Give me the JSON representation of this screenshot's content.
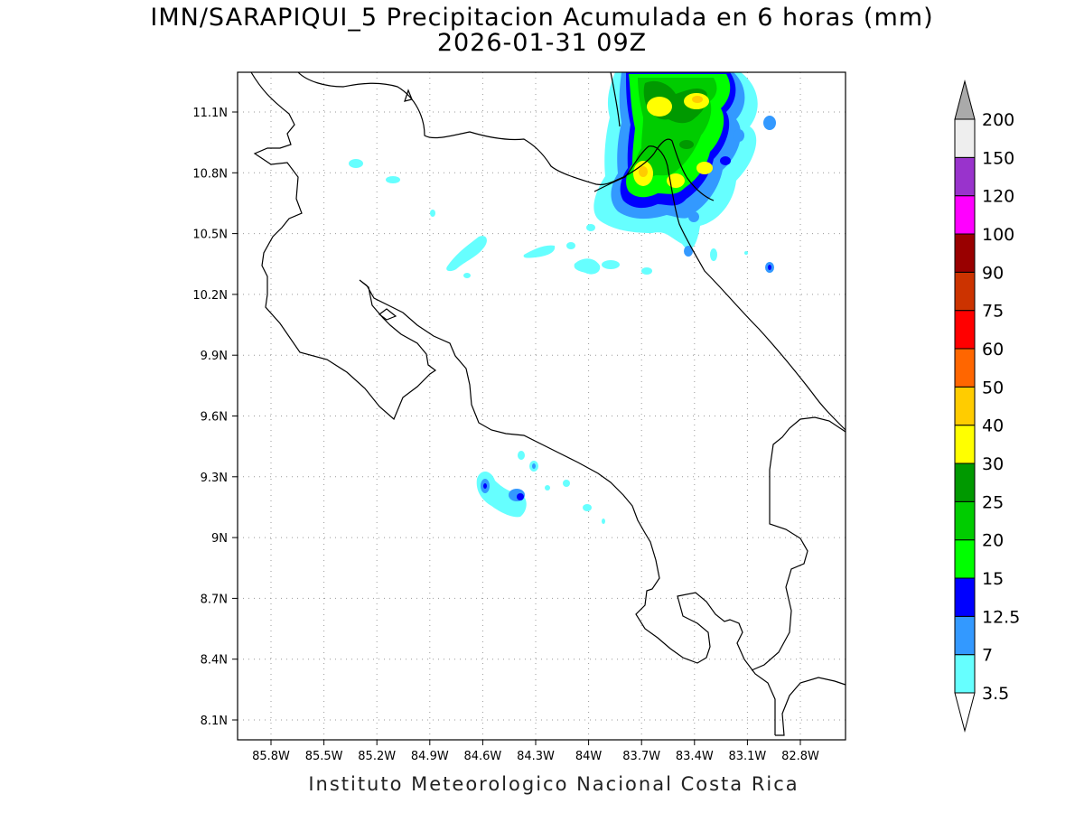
{
  "title": "IMN/SARAPIQUI_5 Precipitacion Acumulada en 6 horas (mm)",
  "subtitle": "2026-01-31 09Z",
  "footer": "Instituto Meteorologico Nacional Costa Rica",
  "map": {
    "lon_range": [
      -86.1,
      -82.5
    ],
    "lat_range": [
      8.0,
      11.3
    ],
    "lon_ticks": [
      "85.8W",
      "85.5W",
      "85.2W",
      "84.9W",
      "84.6W",
      "84.3W",
      "84W",
      "83.7W",
      "83.4W",
      "83.1W",
      "82.8W"
    ],
    "lat_ticks": [
      "11.1N",
      "10.8N",
      "10.5N",
      "10.2N",
      "9.9N",
      "9.6N",
      "9.3N",
      "9N",
      "8.7N",
      "8.4N",
      "8.1N"
    ],
    "grid": "dotted"
  },
  "colorbar": {
    "labels": [
      "3.5",
      "7",
      "12.5",
      "15",
      "20",
      "25",
      "30",
      "40",
      "50",
      "60",
      "75",
      "90",
      "100",
      "120",
      "150",
      "200"
    ],
    "colors": [
      "#ffffff",
      "#66ffff",
      "#3399ff",
      "#0000ff",
      "#00ff00",
      "#00cc00",
      "#009900",
      "#ffff00",
      "#ffcc00",
      "#ff6600",
      "#ff0000",
      "#cc3300",
      "#990000",
      "#ff00ff",
      "#9933cc",
      "#eeeeee",
      "#aaaaaa"
    ]
  }
}
